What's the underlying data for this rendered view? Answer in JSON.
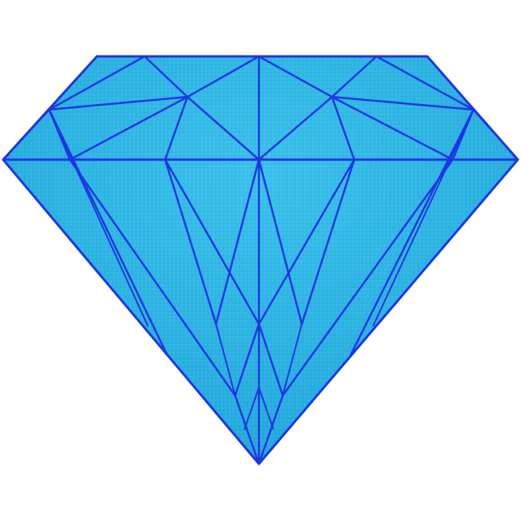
{
  "image": {
    "subject": "diamond-icon",
    "colors": {
      "background": "#ffffff",
      "fill": "#22a9dc",
      "fill_light": "#38bfe8",
      "outline": "#1d35e6"
    }
  }
}
